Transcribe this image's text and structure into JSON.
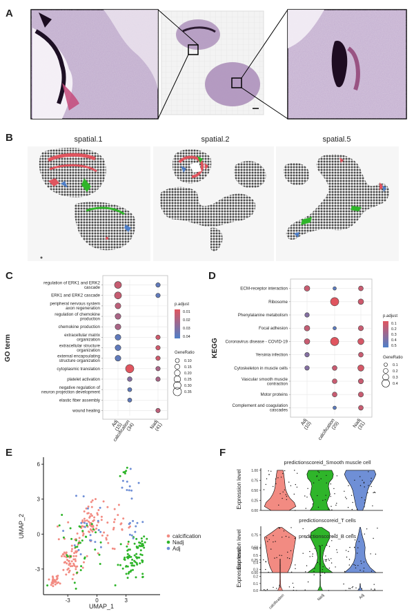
{
  "figure": {
    "panels": {
      "A": {
        "letter": "A"
      },
      "B": {
        "letter": "B",
        "titles": [
          "spatial.1",
          "spatial.2",
          "spatial.5"
        ]
      },
      "C": {
        "letter": "C",
        "ylabel": "GO term"
      },
      "D": {
        "letter": "D",
        "ylabel": "KEGG"
      },
      "E": {
        "letter": "E"
      },
      "F": {
        "letter": "F",
        "ylabel": "Expression level"
      }
    },
    "colors": {
      "calcification": "#f28b82",
      "Nadj": "#2fb52a",
      "Adj": "#6f8fd6",
      "padj_high": "#e0555f",
      "padj_low": "#4e7fc8",
      "spot_grey": "#555555",
      "tissue_purple": "#8f6f9c"
    }
  },
  "chart_data": [
    {
      "id": "C",
      "type": "scatter",
      "ylabel": "GO term",
      "categories": [
        "Adj\n(15)",
        "calcification\n(34)",
        "Nadj\n(41)"
      ],
      "terms": [
        "regulation of ERK1 and ERK2\ncascade",
        "ERK1 and ERK2 cascade",
        "peripheral nervous system\naxon regeneration",
        "regulation of chemokine\nproduction",
        "chemokine production",
        "extracellular matrix\norganization",
        "extracellular structure\norganization",
        "external encapsulating\nstructure organization",
        "cytoplasmic translation",
        "platelet activation",
        "negative regulation of\nneuron projection development",
        "elastic fiber assembly",
        "wound healing"
      ],
      "points": [
        {
          "term": 0,
          "cat": 0,
          "padj": 0.012,
          "ratio": 0.27
        },
        {
          "term": 0,
          "cat": 2,
          "padj": 0.04,
          "ratio": 0.12
        },
        {
          "term": 1,
          "cat": 0,
          "padj": 0.012,
          "ratio": 0.27
        },
        {
          "term": 1,
          "cat": 2,
          "padj": 0.04,
          "ratio": 0.12
        },
        {
          "term": 2,
          "cat": 0,
          "padj": 0.015,
          "ratio": 0.2
        },
        {
          "term": 3,
          "cat": 0,
          "padj": 0.02,
          "ratio": 0.2
        },
        {
          "term": 4,
          "cat": 0,
          "padj": 0.02,
          "ratio": 0.2
        },
        {
          "term": 5,
          "cat": 0,
          "padj": 0.04,
          "ratio": 0.2
        },
        {
          "term": 5,
          "cat": 2,
          "padj": 0.01,
          "ratio": 0.12
        },
        {
          "term": 6,
          "cat": 0,
          "padj": 0.04,
          "ratio": 0.2
        },
        {
          "term": 6,
          "cat": 2,
          "padj": 0.01,
          "ratio": 0.12
        },
        {
          "term": 7,
          "cat": 0,
          "padj": 0.04,
          "ratio": 0.2
        },
        {
          "term": 7,
          "cat": 2,
          "padj": 0.01,
          "ratio": 0.12
        },
        {
          "term": 8,
          "cat": 1,
          "padj": 0.005,
          "ratio": 0.35
        },
        {
          "term": 8,
          "cat": 2,
          "padj": 0.02,
          "ratio": 0.12
        },
        {
          "term": 9,
          "cat": 1,
          "padj": 0.03,
          "ratio": 0.13
        },
        {
          "term": 9,
          "cat": 2,
          "padj": 0.02,
          "ratio": 0.12
        },
        {
          "term": 10,
          "cat": 1,
          "padj": 0.04,
          "ratio": 0.1
        },
        {
          "term": 11,
          "cat": 1,
          "padj": 0.04,
          "ratio": 0.1
        },
        {
          "term": 12,
          "cat": 2,
          "padj": 0.015,
          "ratio": 0.12
        }
      ],
      "color_legend": {
        "title": "p.adjust",
        "ticks": [
          "0.01",
          "0.02",
          "0.03",
          "0.04"
        ]
      },
      "size_legend": {
        "title": "GeneRatio",
        "ticks": [
          "0.10",
          "0.15",
          "0.20",
          "0.25",
          "0.30",
          "0.35"
        ]
      }
    },
    {
      "id": "D",
      "type": "scatter",
      "ylabel": "KEGG",
      "categories": [
        "Adj\n(10)",
        "calcification\n(29)",
        "Nadj\n(31)"
      ],
      "terms": [
        "ECM-receptor interaction",
        "Ribosome",
        "Phenylalanine metabolism",
        "Focal adhesion",
        "Coronavirus disease - COVID-19",
        "Yersinia infection",
        "Cytoskeleton in muscle cells",
        "Vascular smooth muscle\ncontraction",
        "Motor proteins",
        "Complement and coagulation\ncascades"
      ],
      "points": [
        {
          "term": 0,
          "cat": 0,
          "padj": 0.1,
          "ratio": 0.25
        },
        {
          "term": 0,
          "cat": 1,
          "padj": 0.5,
          "ratio": 0.1
        },
        {
          "term": 0,
          "cat": 2,
          "padj": 0.1,
          "ratio": 0.2
        },
        {
          "term": 1,
          "cat": 1,
          "padj": 0.01,
          "ratio": 0.45
        },
        {
          "term": 1,
          "cat": 2,
          "padj": 0.08,
          "ratio": 0.25
        },
        {
          "term": 2,
          "cat": 0,
          "padj": 0.35,
          "ratio": 0.18
        },
        {
          "term": 3,
          "cat": 0,
          "padj": 0.12,
          "ratio": 0.25
        },
        {
          "term": 3,
          "cat": 1,
          "padj": 0.5,
          "ratio": 0.1
        },
        {
          "term": 3,
          "cat": 2,
          "padj": 0.1,
          "ratio": 0.22
        },
        {
          "term": 4,
          "cat": 0,
          "padj": 0.1,
          "ratio": 0.25
        },
        {
          "term": 4,
          "cat": 1,
          "padj": 0.01,
          "ratio": 0.45
        },
        {
          "term": 4,
          "cat": 2,
          "padj": 0.05,
          "ratio": 0.3
        },
        {
          "term": 5,
          "cat": 0,
          "padj": 0.35,
          "ratio": 0.18
        },
        {
          "term": 5,
          "cat": 2,
          "padj": 0.1,
          "ratio": 0.2
        },
        {
          "term": 6,
          "cat": 0,
          "padj": 0.35,
          "ratio": 0.18
        },
        {
          "term": 6,
          "cat": 1,
          "padj": 0.1,
          "ratio": 0.2
        },
        {
          "term": 6,
          "cat": 2,
          "padj": 0.05,
          "ratio": 0.3
        },
        {
          "term": 7,
          "cat": 1,
          "padj": 0.1,
          "ratio": 0.2
        },
        {
          "term": 7,
          "cat": 2,
          "padj": 0.1,
          "ratio": 0.22
        },
        {
          "term": 8,
          "cat": 1,
          "padj": 0.1,
          "ratio": 0.2
        },
        {
          "term": 8,
          "cat": 2,
          "padj": 0.1,
          "ratio": 0.22
        },
        {
          "term": 9,
          "cat": 1,
          "padj": 0.5,
          "ratio": 0.1
        },
        {
          "term": 9,
          "cat": 2,
          "padj": 0.1,
          "ratio": 0.2
        }
      ],
      "color_legend": {
        "title": "p.adjust",
        "ticks": [
          "0.1",
          "0.2",
          "0.3",
          "0.4",
          "0.5"
        ]
      },
      "size_legend": {
        "title": "GeneRatio",
        "ticks": [
          "0.1",
          "0.2",
          "0.3",
          "0.4"
        ]
      }
    },
    {
      "id": "E",
      "type": "scatter",
      "xlabel": "UMAP_1",
      "ylabel": "UMAP_2",
      "xticks": [
        -3,
        0,
        3
      ],
      "yticks": [
        -3,
        0,
        3,
        6
      ],
      "xlim": [
        -5.5,
        6.5
      ],
      "ylim": [
        -5.2,
        6.6
      ],
      "legend": [
        "calcification",
        "Nadj",
        "Adj"
      ],
      "clusters": [
        {
          "series": "calcification",
          "cx": -2.6,
          "cy": -2.0,
          "sx": 1.0,
          "sy": 1.3,
          "n": 70
        },
        {
          "series": "calcification",
          "cx": -0.8,
          "cy": 1.0,
          "sx": 1.1,
          "sy": 1.4,
          "n": 55
        },
        {
          "series": "calcification",
          "cx": -4.3,
          "cy": -4.0,
          "sx": 0.4,
          "sy": 0.4,
          "n": 25
        },
        {
          "series": "calcification",
          "cx": 2.0,
          "cy": 0.5,
          "sx": 1.4,
          "sy": 1.6,
          "n": 25
        },
        {
          "series": "Nadj",
          "cx": 3.6,
          "cy": -2.2,
          "sx": 0.9,
          "sy": 0.9,
          "n": 55
        },
        {
          "series": "Nadj",
          "cx": 4.5,
          "cy": -1.0,
          "sx": 0.5,
          "sy": 0.7,
          "n": 25
        },
        {
          "series": "Nadj",
          "cx": -1.5,
          "cy": -1.0,
          "sx": 1.6,
          "sy": 2.0,
          "n": 35
        },
        {
          "series": "Adj",
          "cx": -1.0,
          "cy": 0.5,
          "sx": 1.8,
          "sy": 2.0,
          "n": 20
        },
        {
          "series": "Adj",
          "cx": 3.5,
          "cy": 0.5,
          "sx": 0.9,
          "sy": 1.2,
          "n": 10
        },
        {
          "series": "Adj",
          "cx": 3.2,
          "cy": 4.5,
          "sx": 0.5,
          "sy": 0.9,
          "n": 10
        },
        {
          "series": "Nadj",
          "cx": 3.0,
          "cy": 5.0,
          "sx": 0.4,
          "sy": 0.6,
          "n": 6
        }
      ]
    },
    {
      "id": "F",
      "type": "violin",
      "ylabel": "Expression level",
      "categories": [
        "calcification",
        "Nadj",
        "Adj"
      ],
      "panels": [
        {
          "title": "predictionscoreid_Smooth muscle cell",
          "yticks": [
            "0.00",
            "0.25",
            "0.50",
            "0.75",
            "1.00"
          ],
          "ylim": [
            0,
            1.05
          ],
          "violins": [
            {
              "cat": 0,
              "profile": [
                0.55,
                0.95,
                0.85,
                0.6,
                0.45,
                0.35,
                0.3,
                0.28,
                0.25,
                0.22,
                0.18
              ]
            },
            {
              "cat": 1,
              "profile": [
                0.6,
                0.45,
                0.4,
                0.5,
                0.6,
                0.55,
                0.5,
                0.55,
                0.75,
                0.8,
                0.7
              ]
            },
            {
              "cat": 2,
              "profile": [
                0.15,
                0.25,
                0.3,
                0.35,
                0.4,
                0.45,
                0.55,
                0.7,
                0.85,
                0.95,
                0.85
              ]
            }
          ]
        },
        {
          "title": "predictionscoreid_T cells",
          "yticks": [
            "0.00",
            "0.25",
            "0.50",
            "0.75"
          ],
          "ylim": [
            0,
            0.92
          ],
          "violins": [
            {
              "cat": 0,
              "profile": [
                0.45,
                0.6,
                0.7,
                0.75,
                0.8,
                0.85,
                0.9,
                0.95,
                0.5,
                0.1
              ]
            },
            {
              "cat": 1,
              "profile": [
                0.75,
                0.35,
                0.2,
                0.15,
                0.2,
                0.3,
                0.45,
                0.6,
                0.55,
                0.1
              ]
            },
            {
              "cat": 2,
              "profile": [
                0.95,
                0.6,
                0.4,
                0.3,
                0.28,
                0.3,
                0.25,
                0.15,
                0.08,
                0.02
              ]
            }
          ]
        },
        {
          "title": "predictionscoreid_B cells",
          "yticks": [
            "0.0",
            "0.1",
            "0.2",
            "0.3",
            "0.4",
            "0.5",
            "0.6"
          ],
          "ylim": [
            0,
            0.66
          ],
          "violins": [
            {
              "cat": 0,
              "profile": [
                0.15,
                0.04,
                0.03,
                0.02,
                0.02,
                0.02,
                0.015,
                0.01,
                0.01
              ]
            },
            {
              "cat": 1,
              "profile": [
                0.15,
                0.02,
                0.015,
                0.01,
                0.01,
                0.01,
                0.01,
                0.01,
                0.01,
                0.01,
                0.01
              ]
            },
            {
              "cat": 2,
              "profile": [
                0.15,
                0.04,
                0.02,
                0.01
              ]
            }
          ]
        }
      ]
    }
  ]
}
